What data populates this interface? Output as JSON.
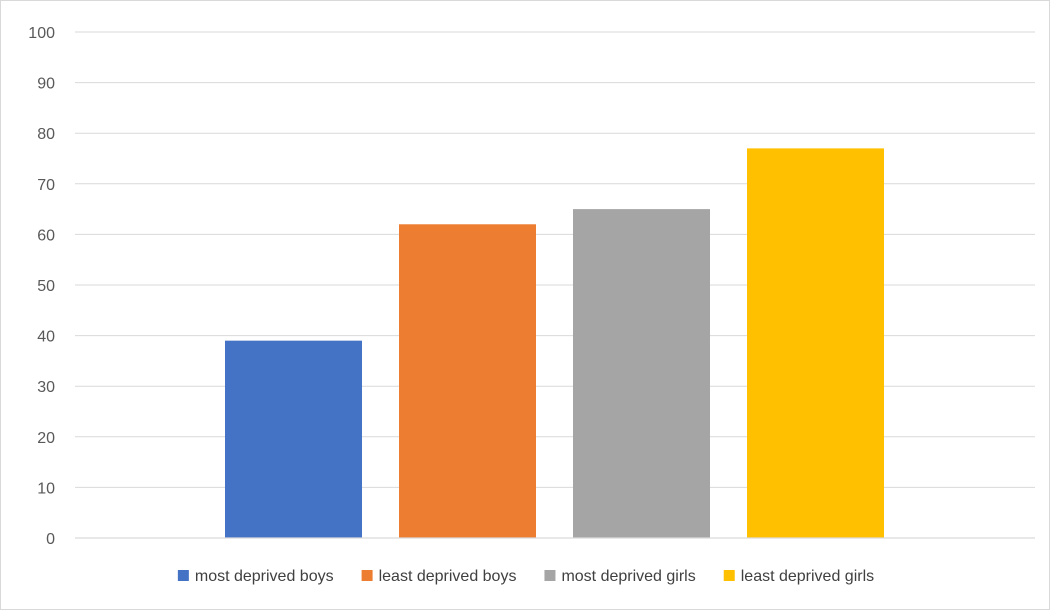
{
  "chart_data": {
    "type": "bar",
    "title": "",
    "xlabel": "",
    "ylabel": "",
    "ylim": [
      0,
      100
    ],
    "yticks": [
      0,
      10,
      20,
      30,
      40,
      50,
      60,
      70,
      80,
      90,
      100
    ],
    "grid": true,
    "legend_position": "bottom",
    "series": [
      {
        "name": "most deprived boys",
        "value": 39,
        "color": "#4472C4"
      },
      {
        "name": "least deprived boys",
        "value": 62,
        "color": "#ED7D31"
      },
      {
        "name": "most deprived girls",
        "value": 65,
        "color": "#A5A5A5"
      },
      {
        "name": "least deprived girls",
        "value": 77,
        "color": "#FFC000"
      }
    ]
  }
}
